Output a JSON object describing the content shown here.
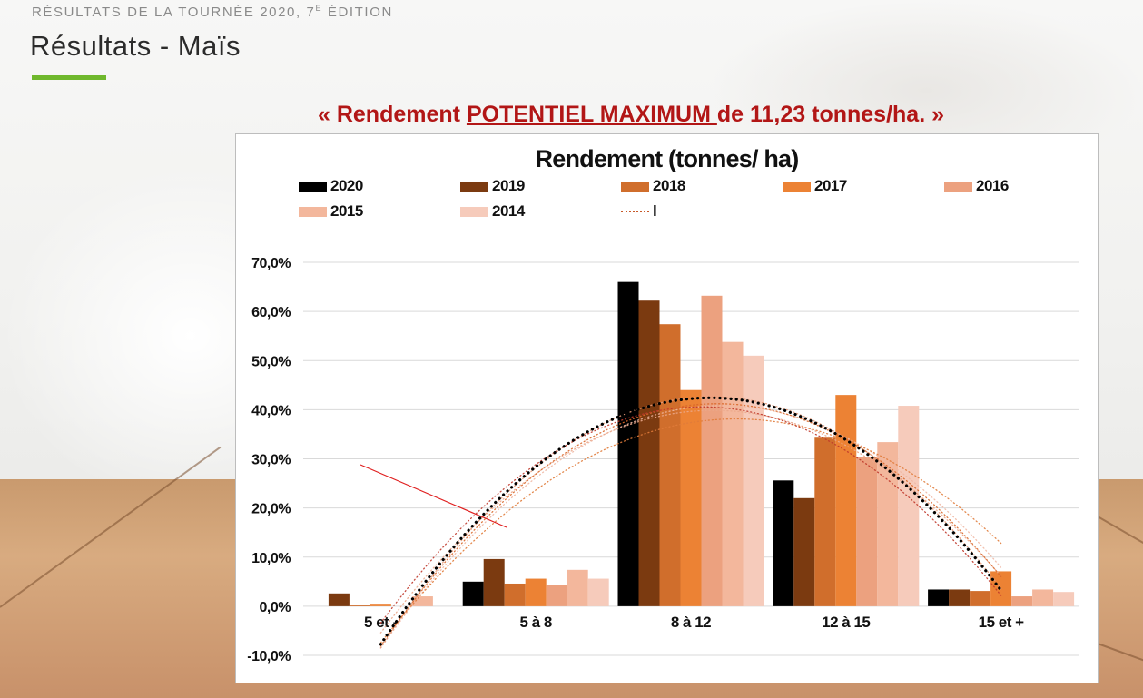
{
  "header": {
    "section_label_main": "RÉSULTATS DE LA TOURNÉE 2020, 7",
    "section_label_sup": "E",
    "section_label_tail": " ÉDITION",
    "page_title": "Résultats - Maïs"
  },
  "quote": {
    "open": "« Rendement ",
    "highlight": "POTENTIEL MAXIMUM ",
    "close": "de 11,23 tonnes/ha. »"
  },
  "colors": {
    "accent_green": "#6fb82c",
    "quote_red": "#b21616"
  },
  "chart_data": {
    "type": "bar",
    "title": "Rendement (tonnes/ ha)",
    "categories": [
      "5 et -",
      "5 à 8",
      "8 à 12",
      "12 à 15",
      "15 et +"
    ],
    "y_ticks": [
      "70,0%",
      "60,0%",
      "50,0%",
      "40,0%",
      "30,0%",
      "20,0%",
      "10,0%",
      "0,0%",
      "-10,0%"
    ],
    "ylim": [
      -10,
      70
    ],
    "grid": true,
    "legend_position": "top",
    "series": [
      {
        "name": "2020",
        "color": "#000000",
        "values": [
          0.0,
          5.0,
          66.0,
          25.6,
          3.4
        ]
      },
      {
        "name": "2019",
        "color": "#7b3a10",
        "values": [
          2.6,
          9.6,
          62.2,
          22.0,
          3.4
        ]
      },
      {
        "name": "2018",
        "color": "#d06e2c",
        "values": [
          0.3,
          4.6,
          57.4,
          34.3,
          3.1
        ]
      },
      {
        "name": "2017",
        "color": "#ec8234",
        "values": [
          0.5,
          5.6,
          44.0,
          43.0,
          7.1
        ]
      },
      {
        "name": "2016",
        "color": "#eca17f",
        "values": [
          0.0,
          4.3,
          63.2,
          30.4,
          2.0
        ]
      },
      {
        "name": "2015",
        "color": "#f3b79c",
        "values": [
          2.0,
          7.4,
          53.8,
          33.4,
          3.4
        ]
      },
      {
        "name": "2014",
        "color": "#f6cbbb",
        "values": [
          0.0,
          5.6,
          51.0,
          40.8,
          2.9
        ]
      }
    ],
    "trendline_legend": "l"
  }
}
